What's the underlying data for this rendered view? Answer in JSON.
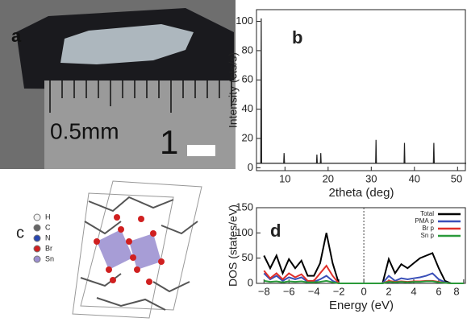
{
  "panels": {
    "a": {
      "label": "a",
      "ruler_text": "0.5mm",
      "ruler_number": "1"
    },
    "c": {
      "label": "c",
      "legend": [
        "H",
        "C",
        "N",
        "Br",
        "Sn"
      ]
    }
  },
  "chart_data": [
    {
      "type": "line",
      "panel_label": "b",
      "ylabel": "Intensity (cts/s)",
      "xlabel": "2theta (deg)",
      "x": [
        3.4,
        4.4,
        4.5,
        4.6,
        9.7,
        9.8,
        9.9,
        17.3,
        17.4,
        17.5,
        18.2,
        18.3,
        18.4,
        31,
        31.1,
        31.2,
        37.6,
        37.7,
        37.8,
        44.4,
        44.5,
        44.6,
        52
      ],
      "series": [
        {
          "color": "#222222",
          "values": [
            3,
            3,
            102,
            3,
            3,
            10,
            3,
            3,
            9,
            3,
            3,
            10,
            3,
            3,
            19,
            3,
            3,
            17,
            3,
            3,
            17,
            3,
            3
          ]
        }
      ],
      "xlim": [
        3.4,
        52
      ],
      "ylim": [
        -2,
        108
      ],
      "xticks": [
        10,
        20,
        30,
        40,
        50
      ],
      "yticks": [
        0,
        20,
        40,
        60,
        80,
        100
      ]
    },
    {
      "type": "line",
      "panel_label": "d",
      "ylabel": "DOS (states/eV)",
      "xlabel": "Energy (eV)",
      "legend": "upper right",
      "x": [
        -8,
        -7.5,
        -7,
        -6.5,
        -6,
        -5.5,
        -5,
        -4.5,
        -4,
        -3.5,
        -3,
        -2.5,
        -2,
        -1.5,
        -1,
        -0.5,
        0,
        0.5,
        1,
        1.5,
        2,
        2.5,
        3,
        3.5,
        4,
        4.5,
        5,
        5.5,
        6,
        6.5,
        7,
        7.5,
        8
      ],
      "series": [
        {
          "name": "Total",
          "color": "#000000",
          "values": [
            55,
            30,
            55,
            20,
            48,
            30,
            45,
            15,
            15,
            40,
            100,
            40,
            0,
            0,
            0,
            0,
            0,
            0,
            0,
            0,
            48,
            20,
            38,
            30,
            40,
            50,
            55,
            60,
            30,
            5,
            0,
            0,
            0
          ]
        },
        {
          "name": "PMA p",
          "color": "#3a4fb8",
          "values": [
            20,
            8,
            15,
            5,
            12,
            8,
            12,
            3,
            3,
            8,
            15,
            5,
            0,
            0,
            0,
            0,
            0,
            0,
            0,
            0,
            15,
            5,
            10,
            8,
            10,
            12,
            15,
            20,
            8,
            2,
            0,
            0,
            0
          ]
        },
        {
          "name": "Br p",
          "color": "#e0302a",
          "values": [
            25,
            10,
            20,
            8,
            20,
            12,
            18,
            5,
            5,
            20,
            35,
            15,
            0,
            0,
            0,
            0,
            0,
            0,
            0,
            0,
            5,
            3,
            4,
            3,
            4,
            4,
            5,
            5,
            3,
            1,
            0,
            0,
            0
          ]
        },
        {
          "name": "Sn p",
          "color": "#2a9a3a",
          "values": [
            5,
            3,
            4,
            2,
            4,
            3,
            4,
            2,
            2,
            3,
            5,
            2,
            0,
            0,
            0,
            0,
            0,
            0,
            0,
            0,
            3,
            2,
            3,
            2,
            3,
            3,
            4,
            4,
            2,
            1,
            0,
            0,
            0
          ]
        }
      ],
      "xlim": [
        -8.6,
        8.2
      ],
      "ylim": [
        0,
        150
      ],
      "xticks": [
        {
          "value": -8,
          "label": "−8"
        },
        {
          "value": -6,
          "label": "−6"
        },
        {
          "value": -4,
          "label": "−4"
        },
        {
          "value": -2,
          "label": "−2"
        },
        0,
        2,
        4,
        6,
        8
      ],
      "yticks": [
        0,
        50,
        100,
        150
      ]
    }
  ]
}
